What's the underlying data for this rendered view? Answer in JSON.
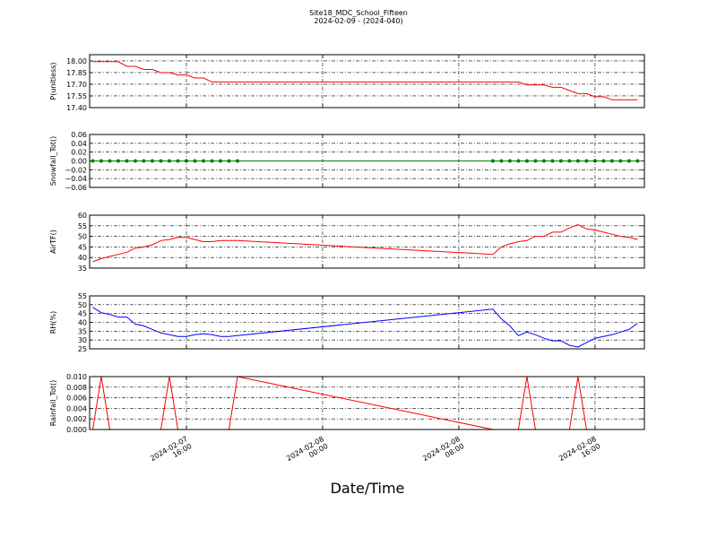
{
  "chart_data": [
    {
      "type": "line",
      "title": "Site18_MDC_School_Fifteen",
      "subtitle": "2024-02-09 - (2024-040)",
      "ylabel": "P(unitless)",
      "x": [
        "2024-02-07 10:30",
        "2024-02-07 11:00",
        "2024-02-07 11:30",
        "2024-02-07 12:00",
        "2024-02-07 12:30",
        "2024-02-07 13:00",
        "2024-02-07 13:30",
        "2024-02-07 14:00",
        "2024-02-07 14:30",
        "2024-02-07 15:00",
        "2024-02-07 15:30",
        "2024-02-07 16:00",
        "2024-02-07 16:30",
        "2024-02-07 17:00",
        "2024-02-07 17:30",
        "2024-02-07 18:00",
        "2024-02-07 18:30",
        "2024-02-07 19:00",
        "2024-02-08 10:00",
        "2024-02-08 10:30",
        "2024-02-08 11:00",
        "2024-02-08 11:30",
        "2024-02-08 12:00",
        "2024-02-08 12:30",
        "2024-02-08 13:00",
        "2024-02-08 13:30",
        "2024-02-08 14:00",
        "2024-02-08 14:30",
        "2024-02-08 15:00",
        "2024-02-08 15:30",
        "2024-02-08 16:00",
        "2024-02-08 16:30",
        "2024-02-08 17:00",
        "2024-02-08 17:30",
        "2024-02-08 18:00",
        "2024-02-08 18:30"
      ],
      "series": [
        {
          "color": "#ff0000",
          "values": [
            17.99,
            17.99,
            17.99,
            17.99,
            17.93,
            17.93,
            17.89,
            17.89,
            17.85,
            17.85,
            17.82,
            17.82,
            17.78,
            17.78,
            17.73,
            17.73,
            17.73,
            17.73,
            17.73,
            17.73,
            17.73,
            17.73,
            17.69,
            17.69,
            17.69,
            17.66,
            17.66,
            17.62,
            17.58,
            17.58,
            17.54,
            17.54,
            17.5,
            17.5,
            17.5,
            17.5
          ]
        }
      ],
      "ylim": [
        17.4,
        18.08
      ],
      "yticks": [
        {
          "value": 17.4,
          "label": "17.40"
        },
        {
          "value": 17.55,
          "label": "17.55"
        },
        {
          "value": 17.7,
          "label": "17.70"
        },
        {
          "value": 17.85,
          "label": "17.85"
        },
        {
          "value": 18.0,
          "label": "18.00"
        }
      ],
      "grid": true
    },
    {
      "type": "line",
      "ylabel": "Snowfall_Tot()",
      "markers": true,
      "x": [
        "2024-02-07 10:30",
        "2024-02-07 11:00",
        "2024-02-07 11:30",
        "2024-02-07 12:00",
        "2024-02-07 12:30",
        "2024-02-07 13:00",
        "2024-02-07 13:30",
        "2024-02-07 14:00",
        "2024-02-07 14:30",
        "2024-02-07 15:00",
        "2024-02-07 15:30",
        "2024-02-07 16:00",
        "2024-02-07 16:30",
        "2024-02-07 17:00",
        "2024-02-07 17:30",
        "2024-02-07 18:00",
        "2024-02-07 18:30",
        "2024-02-07 19:00",
        "2024-02-08 10:00",
        "2024-02-08 10:30",
        "2024-02-08 11:00",
        "2024-02-08 11:30",
        "2024-02-08 12:00",
        "2024-02-08 12:30",
        "2024-02-08 13:00",
        "2024-02-08 13:30",
        "2024-02-08 14:00",
        "2024-02-08 14:30",
        "2024-02-08 15:00",
        "2024-02-08 15:30",
        "2024-02-08 16:00",
        "2024-02-08 16:30",
        "2024-02-08 17:00",
        "2024-02-08 17:30",
        "2024-02-08 18:00",
        "2024-02-08 18:30"
      ],
      "series": [
        {
          "color": "#008000",
          "values": [
            0,
            0,
            0,
            0,
            0,
            0,
            0,
            0,
            0,
            0,
            0,
            0,
            0,
            0,
            0,
            0,
            0,
            0,
            0,
            0,
            0,
            0,
            0,
            0,
            0,
            0,
            0,
            0,
            0,
            0,
            0,
            0,
            0,
            0,
            0,
            0
          ]
        }
      ],
      "ylim": [
        -0.06,
        0.06
      ],
      "yticks": [
        {
          "value": -0.06,
          "label": "−0.06"
        },
        {
          "value": -0.04,
          "label": "−0.04"
        },
        {
          "value": -0.02,
          "label": "−0.02"
        },
        {
          "value": 0,
          "label": "0.00"
        },
        0.02,
        0.04,
        0.06
      ],
      "grid": true
    },
    {
      "type": "line",
      "ylabel": "AirTF()",
      "x": [
        "2024-02-07 10:30",
        "2024-02-07 11:00",
        "2024-02-07 11:30",
        "2024-02-07 12:00",
        "2024-02-07 12:30",
        "2024-02-07 13:00",
        "2024-02-07 13:30",
        "2024-02-07 14:00",
        "2024-02-07 14:30",
        "2024-02-07 15:00",
        "2024-02-07 15:30",
        "2024-02-07 16:00",
        "2024-02-07 16:30",
        "2024-02-07 17:00",
        "2024-02-07 17:30",
        "2024-02-07 18:00",
        "2024-02-07 18:30",
        "2024-02-07 19:00",
        "2024-02-08 10:00",
        "2024-02-08 10:30",
        "2024-02-08 11:00",
        "2024-02-08 11:30",
        "2024-02-08 12:00",
        "2024-02-08 12:30",
        "2024-02-08 13:00",
        "2024-02-08 13:30",
        "2024-02-08 14:00",
        "2024-02-08 14:30",
        "2024-02-08 15:00",
        "2024-02-08 15:30",
        "2024-02-08 16:00",
        "2024-02-08 16:30",
        "2024-02-08 17:00",
        "2024-02-08 17:30",
        "2024-02-08 18:00",
        "2024-02-08 18:30"
      ],
      "series": [
        {
          "color": "#ff0000",
          "values": [
            38,
            39.5,
            40.5,
            41.5,
            42.5,
            44.5,
            45,
            46,
            48,
            48.5,
            49.5,
            49.5,
            48.5,
            47.5,
            47.5,
            48,
            48,
            48,
            41.5,
            45,
            46.5,
            47.5,
            48,
            50,
            50,
            52,
            52,
            54,
            55.5,
            53.5,
            53,
            52,
            51,
            50,
            49.5,
            48.5
          ]
        }
      ],
      "ylim": [
        35,
        60
      ],
      "yticks": [
        35,
        40,
        45,
        50,
        55,
        60
      ],
      "grid": true
    },
    {
      "type": "line",
      "ylabel": "RH(%)",
      "x": [
        "2024-02-07 10:30",
        "2024-02-07 11:00",
        "2024-02-07 11:30",
        "2024-02-07 12:00",
        "2024-02-07 12:30",
        "2024-02-07 13:00",
        "2024-02-07 13:30",
        "2024-02-07 14:00",
        "2024-02-07 14:30",
        "2024-02-07 15:00",
        "2024-02-07 15:30",
        "2024-02-07 16:00",
        "2024-02-07 16:30",
        "2024-02-07 17:00",
        "2024-02-07 17:30",
        "2024-02-07 18:00",
        "2024-02-07 18:30",
        "2024-02-07 19:00",
        "2024-02-08 10:00",
        "2024-02-08 10:30",
        "2024-02-08 11:00",
        "2024-02-08 11:30",
        "2024-02-08 12:00",
        "2024-02-08 12:30",
        "2024-02-08 13:00",
        "2024-02-08 13:30",
        "2024-02-08 14:00",
        "2024-02-08 14:30",
        "2024-02-08 15:00",
        "2024-02-08 15:30",
        "2024-02-08 16:00",
        "2024-02-08 16:30",
        "2024-02-08 17:00",
        "2024-02-08 17:30",
        "2024-02-08 18:00",
        "2024-02-08 18:30"
      ],
      "series": [
        {
          "color": "#0000ff",
          "values": [
            48.5,
            45.5,
            44.5,
            43,
            43,
            39,
            38,
            36,
            34,
            33,
            32,
            32,
            33,
            33.5,
            33,
            32,
            32,
            32.5,
            47.5,
            42,
            38,
            32.5,
            34.5,
            33,
            31,
            29.5,
            29.5,
            27,
            26,
            28.5,
            31,
            32,
            33,
            34.5,
            36,
            39.5
          ]
        }
      ],
      "ylim": [
        25,
        55
      ],
      "yticks": [
        25,
        30,
        35,
        40,
        45,
        50,
        55
      ],
      "grid": true
    },
    {
      "type": "line",
      "ylabel": "Rainfall_Tot()",
      "xlabel": "Date/Time",
      "x": [
        "2024-02-07 10:30",
        "2024-02-07 11:00",
        "2024-02-07 11:30",
        "2024-02-07 12:00",
        "2024-02-07 12:30",
        "2024-02-07 13:00",
        "2024-02-07 13:30",
        "2024-02-07 14:00",
        "2024-02-07 14:30",
        "2024-02-07 15:00",
        "2024-02-07 15:30",
        "2024-02-07 16:00",
        "2024-02-07 16:30",
        "2024-02-07 17:00",
        "2024-02-07 17:30",
        "2024-02-07 18:00",
        "2024-02-07 18:30",
        "2024-02-07 19:00",
        "2024-02-08 10:00",
        "2024-02-08 10:30",
        "2024-02-08 11:00",
        "2024-02-08 11:30",
        "2024-02-08 12:00",
        "2024-02-08 12:30",
        "2024-02-08 13:00",
        "2024-02-08 13:30",
        "2024-02-08 14:00",
        "2024-02-08 14:30",
        "2024-02-08 15:00",
        "2024-02-08 15:30",
        "2024-02-08 16:00",
        "2024-02-08 16:30",
        "2024-02-08 17:00",
        "2024-02-08 17:30",
        "2024-02-08 18:00",
        "2024-02-08 18:30"
      ],
      "series": [
        {
          "color": "#ff0000",
          "values": [
            0,
            0.01,
            0,
            0,
            0,
            0,
            0,
            0,
            0,
            0.01,
            0,
            0,
            0,
            0,
            0,
            0,
            0,
            0.01,
            0,
            0,
            0,
            0,
            0.01,
            0,
            0,
            0,
            0,
            0,
            0.01,
            0,
            0,
            0,
            0,
            0,
            0,
            0
          ]
        }
      ],
      "ylim": [
        0,
        0.01
      ],
      "yticks": [
        {
          "value": 0,
          "label": "0.000"
        },
        {
          "value": 0.002,
          "label": "0.002"
        },
        {
          "value": 0.004,
          "label": "0.004"
        },
        {
          "value": 0.006,
          "label": "0.006"
        },
        {
          "value": 0.008,
          "label": "0.008"
        },
        {
          "value": 0.01,
          "label": "0.010"
        }
      ],
      "xlim": [
        "2024-02-07 10:19",
        "2024-02-08 18:54"
      ],
      "xticks": [
        {
          "value": "2024-02-07 16:00",
          "label": "2024-02-07 16:00"
        },
        {
          "value": "2024-02-08 00:00",
          "label": "2024-02-08 00:00"
        },
        {
          "value": "2024-02-08 08:00",
          "label": "2024-02-08 08:00"
        },
        {
          "value": "2024-02-08 16:00",
          "label": "2024-02-08 16:00"
        }
      ],
      "grid": true
    }
  ]
}
